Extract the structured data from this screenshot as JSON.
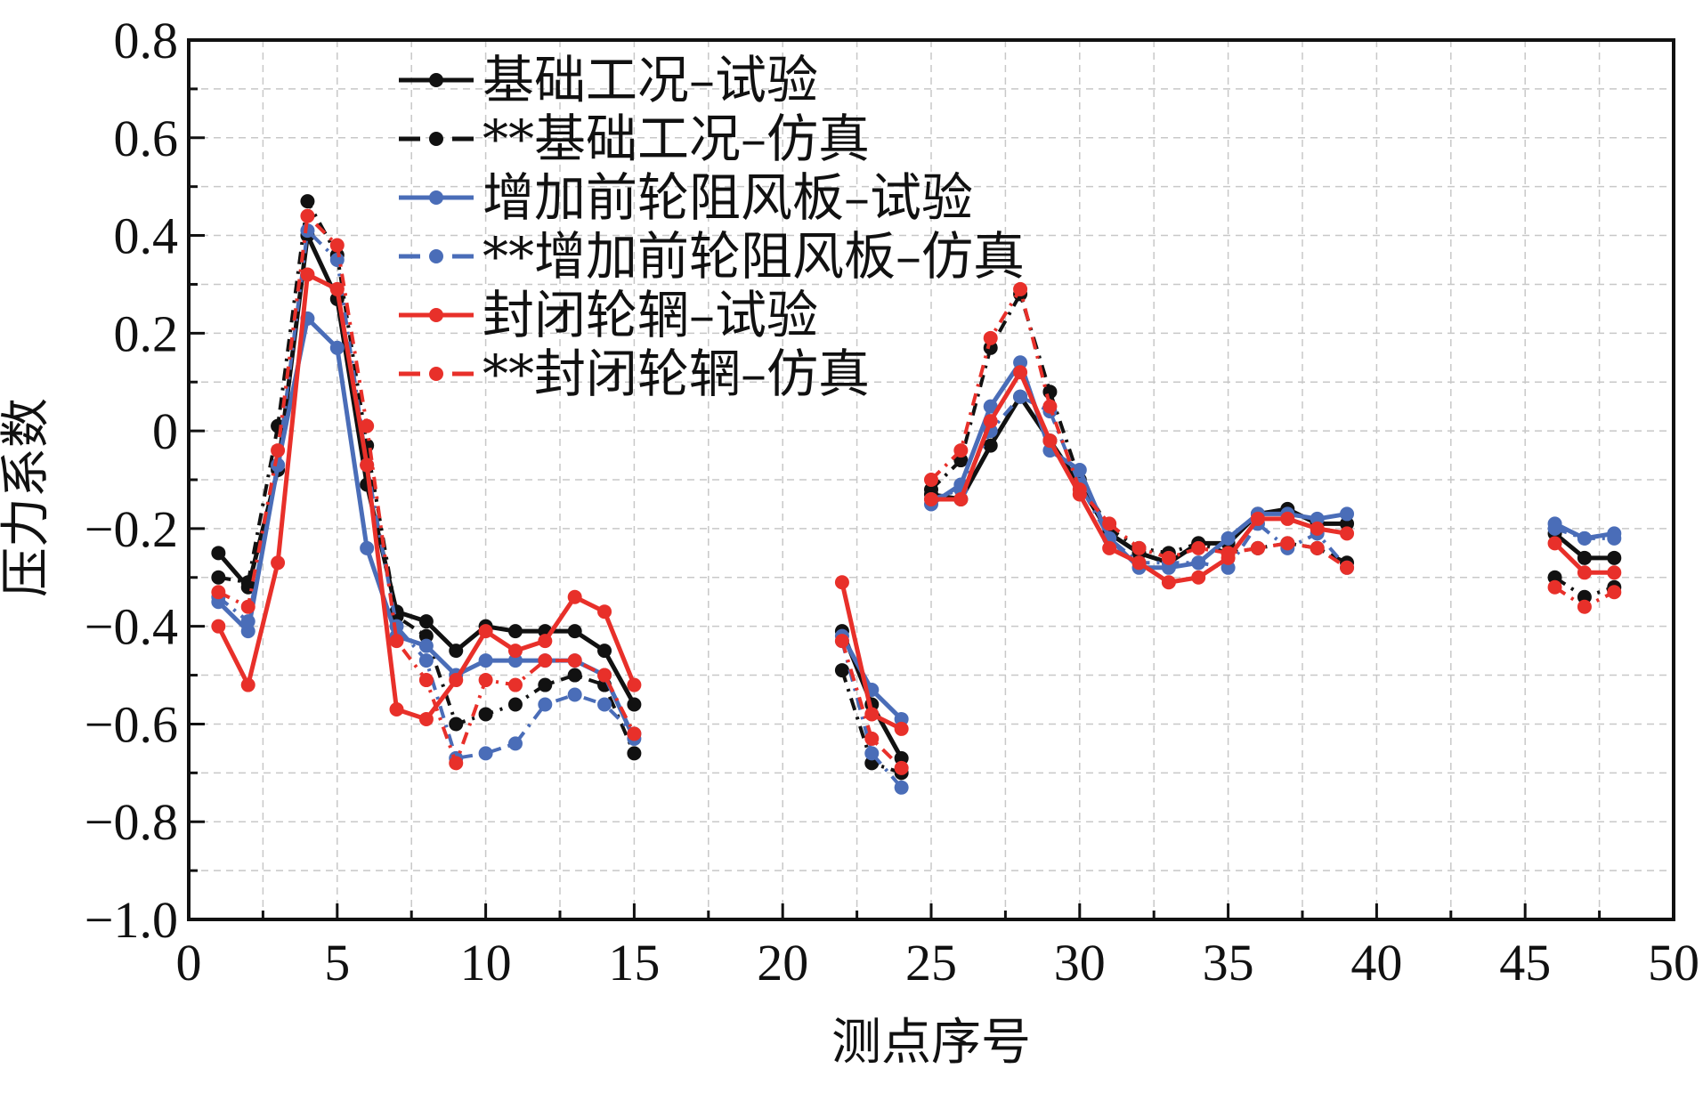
{
  "chart_data": {
    "type": "line",
    "title": "",
    "xlabel": "测点序号",
    "ylabel": "压力系数",
    "xlim": [
      0,
      50
    ],
    "ylim": [
      -1.0,
      0.8
    ],
    "x_ticks": [
      0,
      5,
      10,
      15,
      20,
      25,
      30,
      35,
      40,
      45,
      50
    ],
    "x_tick_labels": [
      "0",
      "5",
      "10",
      "15",
      "20",
      "25",
      "30",
      "35",
      "40",
      "45",
      "50"
    ],
    "y_ticks": [
      0.8,
      0.6,
      0.4,
      0.2,
      0,
      -0.2,
      -0.4,
      -0.6,
      -0.8,
      -1.0
    ],
    "y_tick_labels": [
      "0.8",
      "0.6",
      "0.4",
      "0.2",
      "0",
      "−0.2",
      "−0.4",
      "−0.6",
      "−0.8",
      "−1.0"
    ],
    "grid": true,
    "legend_position": "top-left",
    "segments": [
      [
        1,
        15
      ],
      [
        22,
        24
      ],
      [
        25,
        39
      ],
      [
        46,
        48
      ]
    ],
    "series": [
      {
        "name": "基础工况–试验",
        "color": "#111111",
        "style": "solid",
        "x": [
          1,
          2,
          3,
          4,
          5,
          6,
          7,
          8,
          9,
          10,
          11,
          12,
          13,
          14,
          15,
          22,
          23,
          24,
          25,
          26,
          27,
          28,
          29,
          30,
          31,
          32,
          33,
          34,
          35,
          36,
          37,
          38,
          39,
          46,
          47,
          48
        ],
        "values": [
          -0.25,
          -0.32,
          -0.08,
          0.4,
          0.27,
          -0.11,
          -0.37,
          -0.39,
          -0.45,
          -0.4,
          -0.41,
          -0.41,
          -0.41,
          -0.45,
          -0.56,
          -0.41,
          -0.56,
          -0.67,
          -0.13,
          -0.14,
          -0.03,
          0.07,
          -0.02,
          -0.11,
          -0.21,
          -0.25,
          -0.27,
          -0.23,
          -0.23,
          -0.17,
          -0.16,
          -0.19,
          -0.19,
          -0.21,
          -0.26,
          -0.26
        ]
      },
      {
        "name": "**基础工况–仿真",
        "color": "#111111",
        "style": "dashed",
        "x": [
          1,
          2,
          3,
          4,
          5,
          6,
          7,
          8,
          9,
          10,
          11,
          12,
          13,
          14,
          15,
          22,
          23,
          24,
          25,
          26,
          27,
          28,
          29,
          30,
          31,
          32,
          33,
          34,
          35,
          36,
          37,
          38,
          39,
          46,
          47,
          48
        ],
        "values": [
          -0.3,
          -0.31,
          0.01,
          0.47,
          0.36,
          -0.03,
          -0.38,
          -0.42,
          -0.6,
          -0.58,
          -0.56,
          -0.52,
          -0.5,
          -0.52,
          -0.66,
          -0.49,
          -0.68,
          -0.7,
          -0.12,
          -0.06,
          0.17,
          0.28,
          0.08,
          -0.1,
          -0.2,
          -0.24,
          -0.25,
          -0.23,
          -0.25,
          -0.24,
          -0.23,
          -0.24,
          -0.27,
          -0.3,
          -0.34,
          -0.32
        ]
      },
      {
        "name": "增加前轮阻风板–试验",
        "color": "#4a6db8",
        "style": "solid",
        "x": [
          1,
          2,
          3,
          4,
          5,
          6,
          7,
          8,
          9,
          10,
          11,
          12,
          13,
          14,
          15,
          22,
          23,
          24,
          25,
          26,
          27,
          28,
          29,
          30,
          31,
          32,
          33,
          34,
          35,
          36,
          37,
          38,
          39,
          46,
          47,
          48
        ],
        "values": [
          -0.35,
          -0.41,
          -0.07,
          0.23,
          0.17,
          -0.24,
          -0.42,
          -0.44,
          -0.5,
          -0.47,
          -0.47,
          -0.47,
          -0.47,
          -0.5,
          -0.63,
          -0.42,
          -0.53,
          -0.59,
          -0.15,
          -0.11,
          0.05,
          0.14,
          -0.04,
          -0.08,
          -0.22,
          -0.28,
          -0.28,
          -0.27,
          -0.22,
          -0.17,
          -0.17,
          -0.18,
          -0.17,
          -0.19,
          -0.22,
          -0.21
        ]
      },
      {
        "name": "**增加前轮阻风板–仿真",
        "color": "#4a6db8",
        "style": "dashed",
        "x": [
          1,
          2,
          3,
          4,
          5,
          6,
          7,
          8,
          9,
          10,
          11,
          12,
          13,
          14,
          15,
          22,
          23,
          24,
          25,
          26,
          27,
          28,
          29,
          30,
          31,
          32,
          33,
          34,
          35,
          36,
          37,
          38,
          39,
          46,
          47,
          48
        ],
        "values": [
          -0.34,
          -0.39,
          -0.07,
          0.41,
          0.35,
          -0.07,
          -0.4,
          -0.47,
          -0.67,
          -0.66,
          -0.64,
          -0.56,
          -0.54,
          -0.56,
          -0.62,
          -0.43,
          -0.66,
          -0.73,
          -0.14,
          -0.12,
          0.0,
          0.07,
          0.04,
          -0.11,
          -0.22,
          -0.27,
          -0.27,
          -0.27,
          -0.28,
          -0.19,
          -0.24,
          -0.21,
          -0.28,
          -0.2,
          -0.22,
          -0.22
        ]
      },
      {
        "name": "封闭轮辋–试验",
        "color": "#e8302a",
        "style": "solid",
        "x": [
          1,
          2,
          3,
          4,
          5,
          6,
          7,
          8,
          9,
          10,
          11,
          12,
          13,
          14,
          15,
          22,
          23,
          24,
          25,
          26,
          27,
          28,
          29,
          30,
          31,
          32,
          33,
          34,
          35,
          36,
          37,
          38,
          39,
          46,
          47,
          48
        ],
        "values": [
          -0.4,
          -0.52,
          -0.27,
          0.32,
          0.29,
          -0.07,
          -0.57,
          -0.59,
          -0.51,
          -0.41,
          -0.45,
          -0.43,
          -0.34,
          -0.37,
          -0.52,
          -0.31,
          -0.58,
          -0.61,
          -0.14,
          -0.14,
          0.02,
          0.12,
          -0.02,
          -0.13,
          -0.24,
          -0.27,
          -0.31,
          -0.3,
          -0.26,
          -0.18,
          -0.18,
          -0.2,
          -0.21,
          -0.23,
          -0.29,
          -0.29
        ]
      },
      {
        "name": "**封闭轮辋–仿真",
        "color": "#e8302a",
        "style": "dashed",
        "x": [
          1,
          2,
          3,
          4,
          5,
          6,
          7,
          8,
          9,
          10,
          11,
          12,
          13,
          14,
          15,
          22,
          23,
          24,
          25,
          26,
          27,
          28,
          29,
          30,
          31,
          32,
          33,
          34,
          35,
          36,
          37,
          38,
          39,
          46,
          47,
          48
        ],
        "values": [
          -0.33,
          -0.36,
          -0.04,
          0.44,
          0.38,
          0.01,
          -0.43,
          -0.51,
          -0.68,
          -0.51,
          -0.52,
          -0.47,
          -0.47,
          -0.5,
          -0.62,
          -0.43,
          -0.63,
          -0.69,
          -0.1,
          -0.04,
          0.19,
          0.29,
          0.05,
          -0.12,
          -0.19,
          -0.24,
          -0.26,
          -0.24,
          -0.25,
          -0.24,
          -0.23,
          -0.24,
          -0.28,
          -0.32,
          -0.36,
          -0.33
        ]
      }
    ]
  }
}
